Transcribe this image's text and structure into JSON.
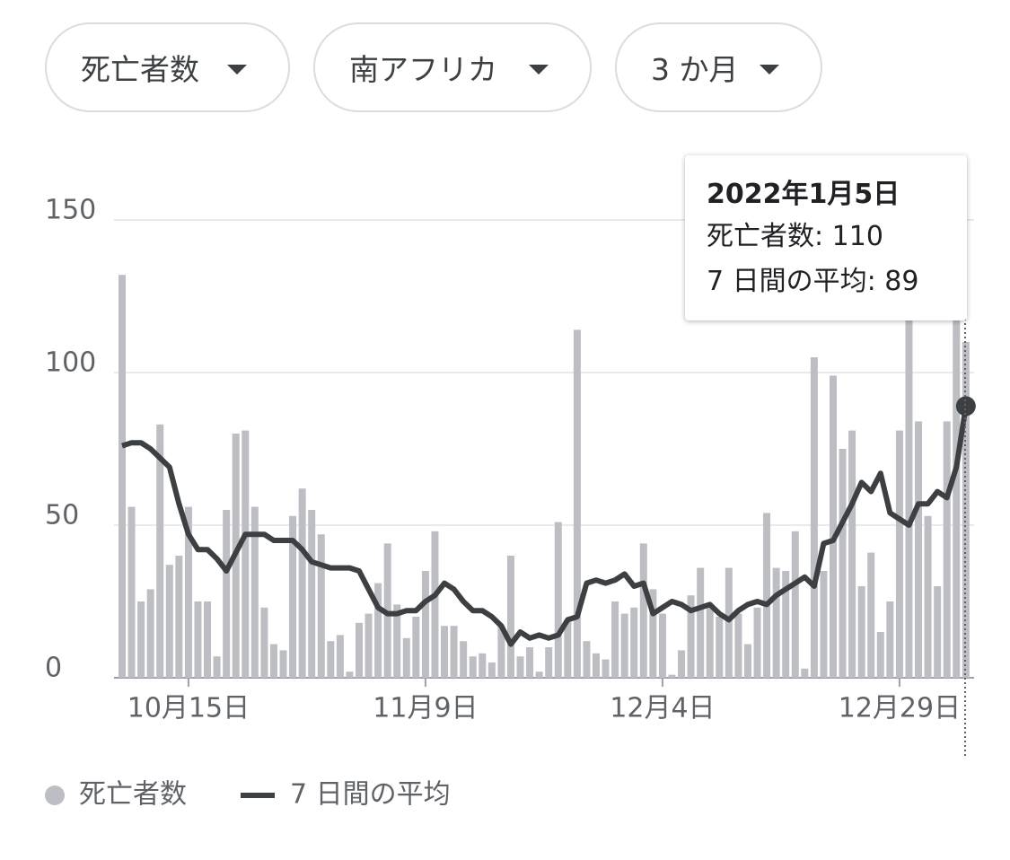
{
  "filters": [
    "死亡者数",
    "南アフリカ",
    "3 か月"
  ],
  "chart_data": {
    "type": "bar",
    "categories": [
      null,
      null,
      null,
      null,
      null,
      null,
      null,
      "10月15日",
      null,
      null,
      null,
      null,
      null,
      null,
      null,
      null,
      null,
      null,
      null,
      null,
      null,
      null,
      null,
      null,
      null,
      null,
      null,
      null,
      null,
      null,
      null,
      null,
      "11月9日",
      null,
      null,
      null,
      null,
      null,
      null,
      null,
      null,
      null,
      null,
      null,
      null,
      null,
      null,
      null,
      null,
      null,
      null,
      null,
      null,
      null,
      null,
      null,
      null,
      "12月4日",
      null,
      null,
      null,
      null,
      null,
      null,
      null,
      null,
      null,
      null,
      null,
      null,
      null,
      null,
      null,
      null,
      null,
      null,
      null,
      null,
      null,
      null,
      null,
      null,
      "12月29日",
      null,
      null,
      null,
      null,
      null,
      null,
      null
    ],
    "series": [
      {
        "name": "死亡者数",
        "type": "bar",
        "color": "#bdbec3",
        "values": [
          132,
          56,
          25,
          29,
          83,
          37,
          40,
          56,
          25,
          25,
          7,
          55,
          80,
          81,
          56,
          23,
          11,
          9,
          53,
          62,
          55,
          47,
          12,
          14,
          2,
          18,
          21,
          31,
          44,
          24,
          13,
          20,
          35,
          48,
          17,
          17,
          12,
          7,
          8,
          5,
          17,
          40,
          7,
          10,
          2,
          10,
          51,
          19,
          114,
          12,
          8,
          6,
          25,
          21,
          23,
          44,
          29,
          21,
          1,
          9,
          27,
          36,
          23,
          20,
          36,
          21,
          11,
          23,
          54,
          36,
          35,
          48,
          3,
          105,
          35,
          99,
          75,
          81,
          30,
          41,
          15,
          25,
          81,
          118,
          84,
          53,
          30,
          84,
          120,
          110
        ]
      },
      {
        "name": "7 日間の平均",
        "type": "line",
        "color": "#3c4043",
        "values": [
          76,
          77,
          77,
          75,
          72,
          69,
          57,
          47,
          42,
          42,
          39,
          35,
          41,
          47,
          47,
          47,
          45,
          45,
          45,
          42,
          38,
          37,
          36,
          36,
          36,
          35,
          29,
          23,
          21,
          21,
          22,
          22,
          25,
          27,
          31,
          29,
          25,
          22,
          22,
          20,
          17,
          11,
          15,
          13,
          14,
          13,
          14,
          19,
          20,
          31,
          32,
          31,
          32,
          34,
          30,
          31,
          21,
          23,
          25,
          24,
          22,
          23,
          24,
          21,
          19,
          22,
          24,
          25,
          24,
          27,
          29,
          31,
          33,
          30,
          44,
          45,
          51,
          57,
          64,
          61,
          67,
          54,
          52,
          50,
          57,
          57,
          61,
          59,
          69,
          89
        ]
      }
    ],
    "ylim": [
      0,
      150
    ],
    "yticks": [
      0,
      50,
      100,
      150
    ],
    "grid": true,
    "tooltip": {
      "title": "2022年1月5日",
      "lines": [
        "死亡者数: 110",
        "7 日間の平均: 89"
      ]
    }
  }
}
